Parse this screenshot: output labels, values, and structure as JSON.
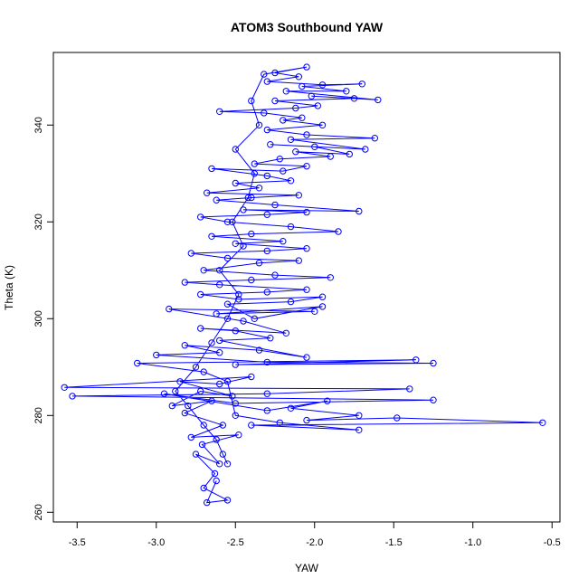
{
  "chart_data": {
    "type": "scatter",
    "title": "ATOM3 Southbound YAW",
    "xlabel": "YAW",
    "ylabel": "Theta (K)",
    "xlim": [
      -3.65,
      -0.45
    ],
    "ylim": [
      258,
      355
    ],
    "xticks": [
      -3.5,
      -3.0,
      -2.5,
      -2.0,
      -1.5,
      -1.0,
      -0.5
    ],
    "xtick_labels": [
      "-3.5",
      "-3.0",
      "-2.5",
      "-2.0",
      "-1.5",
      "-1.0",
      "-0.5"
    ],
    "yticks": [
      260,
      280,
      300,
      320,
      340
    ],
    "ytick_labels": [
      "260",
      "280",
      "300",
      "320",
      "340"
    ],
    "grid": false,
    "color": "#0000ff",
    "marker": "open-circle",
    "connected": true,
    "series": [
      {
        "values": [
          [
            -2.62,
            266.5
          ],
          [
            -2.68,
            262.0
          ],
          [
            -2.55,
            262.5
          ],
          [
            -2.7,
            265.0
          ],
          [
            -2.63,
            268.0
          ],
          [
            -2.75,
            272.0
          ],
          [
            -2.6,
            270.0
          ],
          [
            -2.71,
            274.0
          ],
          [
            -2.48,
            276.0
          ],
          [
            -2.78,
            275.5
          ],
          [
            -2.58,
            278.0
          ],
          [
            -2.82,
            280.5
          ],
          [
            -2.65,
            283.0
          ],
          [
            -2.9,
            282.0
          ],
          [
            -2.72,
            285.0
          ],
          [
            -2.52,
            284.0
          ],
          [
            -2.85,
            287.0
          ],
          [
            -2.6,
            286.5
          ],
          [
            -2.4,
            288.0
          ],
          [
            -3.58,
            285.8
          ],
          [
            -1.4,
            285.5
          ],
          [
            -2.3,
            284.5
          ],
          [
            -3.53,
            284.0
          ],
          [
            -1.25,
            283.2
          ],
          [
            -2.5,
            282.5
          ],
          [
            -2.95,
            284.5
          ],
          [
            -2.3,
            281.0
          ],
          [
            -1.92,
            283.0
          ],
          [
            -2.15,
            281.5
          ],
          [
            -1.72,
            280.0
          ],
          [
            -2.05,
            279.0
          ],
          [
            -1.48,
            279.5
          ],
          [
            -0.56,
            278.5
          ],
          [
            -2.4,
            278.0
          ],
          [
            -1.72,
            277.0
          ],
          [
            -2.22,
            278.5
          ],
          [
            -2.5,
            280.0
          ],
          [
            -2.55,
            287.0
          ],
          [
            -2.7,
            289.0
          ],
          [
            -3.12,
            290.8
          ],
          [
            -1.36,
            291.5
          ],
          [
            -2.5,
            290.5
          ],
          [
            -1.25,
            290.8
          ],
          [
            -2.3,
            291.0
          ],
          [
            -3.0,
            292.5
          ],
          [
            -2.6,
            293.0
          ],
          [
            -2.82,
            294.5
          ],
          [
            -2.35,
            293.5
          ],
          [
            -2.05,
            292.0
          ],
          [
            -2.6,
            295.5
          ],
          [
            -2.28,
            296.0
          ],
          [
            -2.5,
            297.5
          ],
          [
            -2.72,
            298.0
          ],
          [
            -2.18,
            297.0
          ],
          [
            -2.45,
            299.5
          ],
          [
            -2.92,
            302.0
          ],
          [
            -2.0,
            301.5
          ],
          [
            -2.62,
            301.0
          ],
          [
            -1.95,
            302.5
          ],
          [
            -2.38,
            300.0
          ],
          [
            -2.55,
            303.0
          ],
          [
            -2.15,
            303.5
          ],
          [
            -1.95,
            304.5
          ],
          [
            -2.48,
            304.0
          ],
          [
            -2.72,
            305.0
          ],
          [
            -2.3,
            305.5
          ],
          [
            -2.05,
            306.0
          ],
          [
            -2.6,
            307.0
          ],
          [
            -2.82,
            307.5
          ],
          [
            -2.4,
            308.0
          ],
          [
            -1.9,
            308.5
          ],
          [
            -2.25,
            309.0
          ],
          [
            -2.7,
            310.0
          ],
          [
            -2.35,
            311.5
          ],
          [
            -2.1,
            312.0
          ],
          [
            -2.55,
            312.5
          ],
          [
            -2.78,
            313.5
          ],
          [
            -2.3,
            314.0
          ],
          [
            -2.05,
            314.5
          ],
          [
            -2.5,
            315.5
          ],
          [
            -2.2,
            316.0
          ],
          [
            -2.65,
            317.0
          ],
          [
            -2.4,
            317.5
          ],
          [
            -1.85,
            318.0
          ],
          [
            -2.15,
            319.0
          ],
          [
            -2.55,
            320.0
          ],
          [
            -2.72,
            321.0
          ],
          [
            -2.3,
            321.5
          ],
          [
            -2.05,
            322.0
          ],
          [
            -2.45,
            322.5
          ],
          [
            -1.72,
            322.2
          ],
          [
            -2.25,
            323.5
          ],
          [
            -2.62,
            324.5
          ],
          [
            -2.4,
            325.0
          ],
          [
            -2.1,
            325.5
          ],
          [
            -2.68,
            326.0
          ],
          [
            -2.35,
            327.0
          ],
          [
            -2.5,
            328.0
          ],
          [
            -2.15,
            328.5
          ],
          [
            -2.3,
            329.5
          ],
          [
            -2.65,
            331.0
          ],
          [
            -2.2,
            330.5
          ],
          [
            -2.05,
            331.5
          ],
          [
            -2.38,
            332.0
          ],
          [
            -2.22,
            333.0
          ],
          [
            -1.9,
            333.5
          ],
          [
            -2.12,
            334.5
          ],
          [
            -1.78,
            334.0
          ],
          [
            -2.0,
            335.5
          ],
          [
            -2.28,
            336.0
          ],
          [
            -1.68,
            335.0
          ],
          [
            -2.15,
            337.0
          ],
          [
            -1.62,
            337.3
          ],
          [
            -2.05,
            338.0
          ],
          [
            -2.3,
            339.0
          ],
          [
            -1.95,
            340.0
          ],
          [
            -2.2,
            341.0
          ],
          [
            -2.08,
            341.5
          ],
          [
            -2.32,
            342.5
          ],
          [
            -2.6,
            342.8
          ],
          [
            -2.12,
            343.5
          ],
          [
            -1.98,
            344.0
          ],
          [
            -2.25,
            345.0
          ],
          [
            -1.75,
            345.5
          ],
          [
            -2.02,
            346.0
          ],
          [
            -1.6,
            345.2
          ],
          [
            -2.18,
            347.0
          ],
          [
            -1.8,
            347.0
          ],
          [
            -2.08,
            348.0
          ],
          [
            -1.7,
            348.5
          ],
          [
            -1.95,
            348.3
          ],
          [
            -2.3,
            349.0
          ],
          [
            -2.1,
            350.0
          ],
          [
            -2.25,
            350.8
          ],
          [
            -2.05,
            352.0
          ],
          [
            -2.32,
            350.5
          ],
          [
            -2.4,
            345.0
          ],
          [
            -2.35,
            340.0
          ],
          [
            -2.5,
            335.0
          ],
          [
            -2.38,
            330.0
          ],
          [
            -2.42,
            325.0
          ],
          [
            -2.52,
            320.0
          ],
          [
            -2.45,
            315.0
          ],
          [
            -2.6,
            310.0
          ],
          [
            -2.48,
            305.0
          ],
          [
            -2.55,
            300.0
          ],
          [
            -2.65,
            295.0
          ],
          [
            -2.75,
            290.0
          ],
          [
            -2.88,
            285.0
          ],
          [
            -2.8,
            282.0
          ],
          [
            -2.7,
            278.0
          ],
          [
            -2.62,
            275.0
          ],
          [
            -2.58,
            272.0
          ],
          [
            -2.55,
            270.0
          ]
        ]
      }
    ]
  }
}
